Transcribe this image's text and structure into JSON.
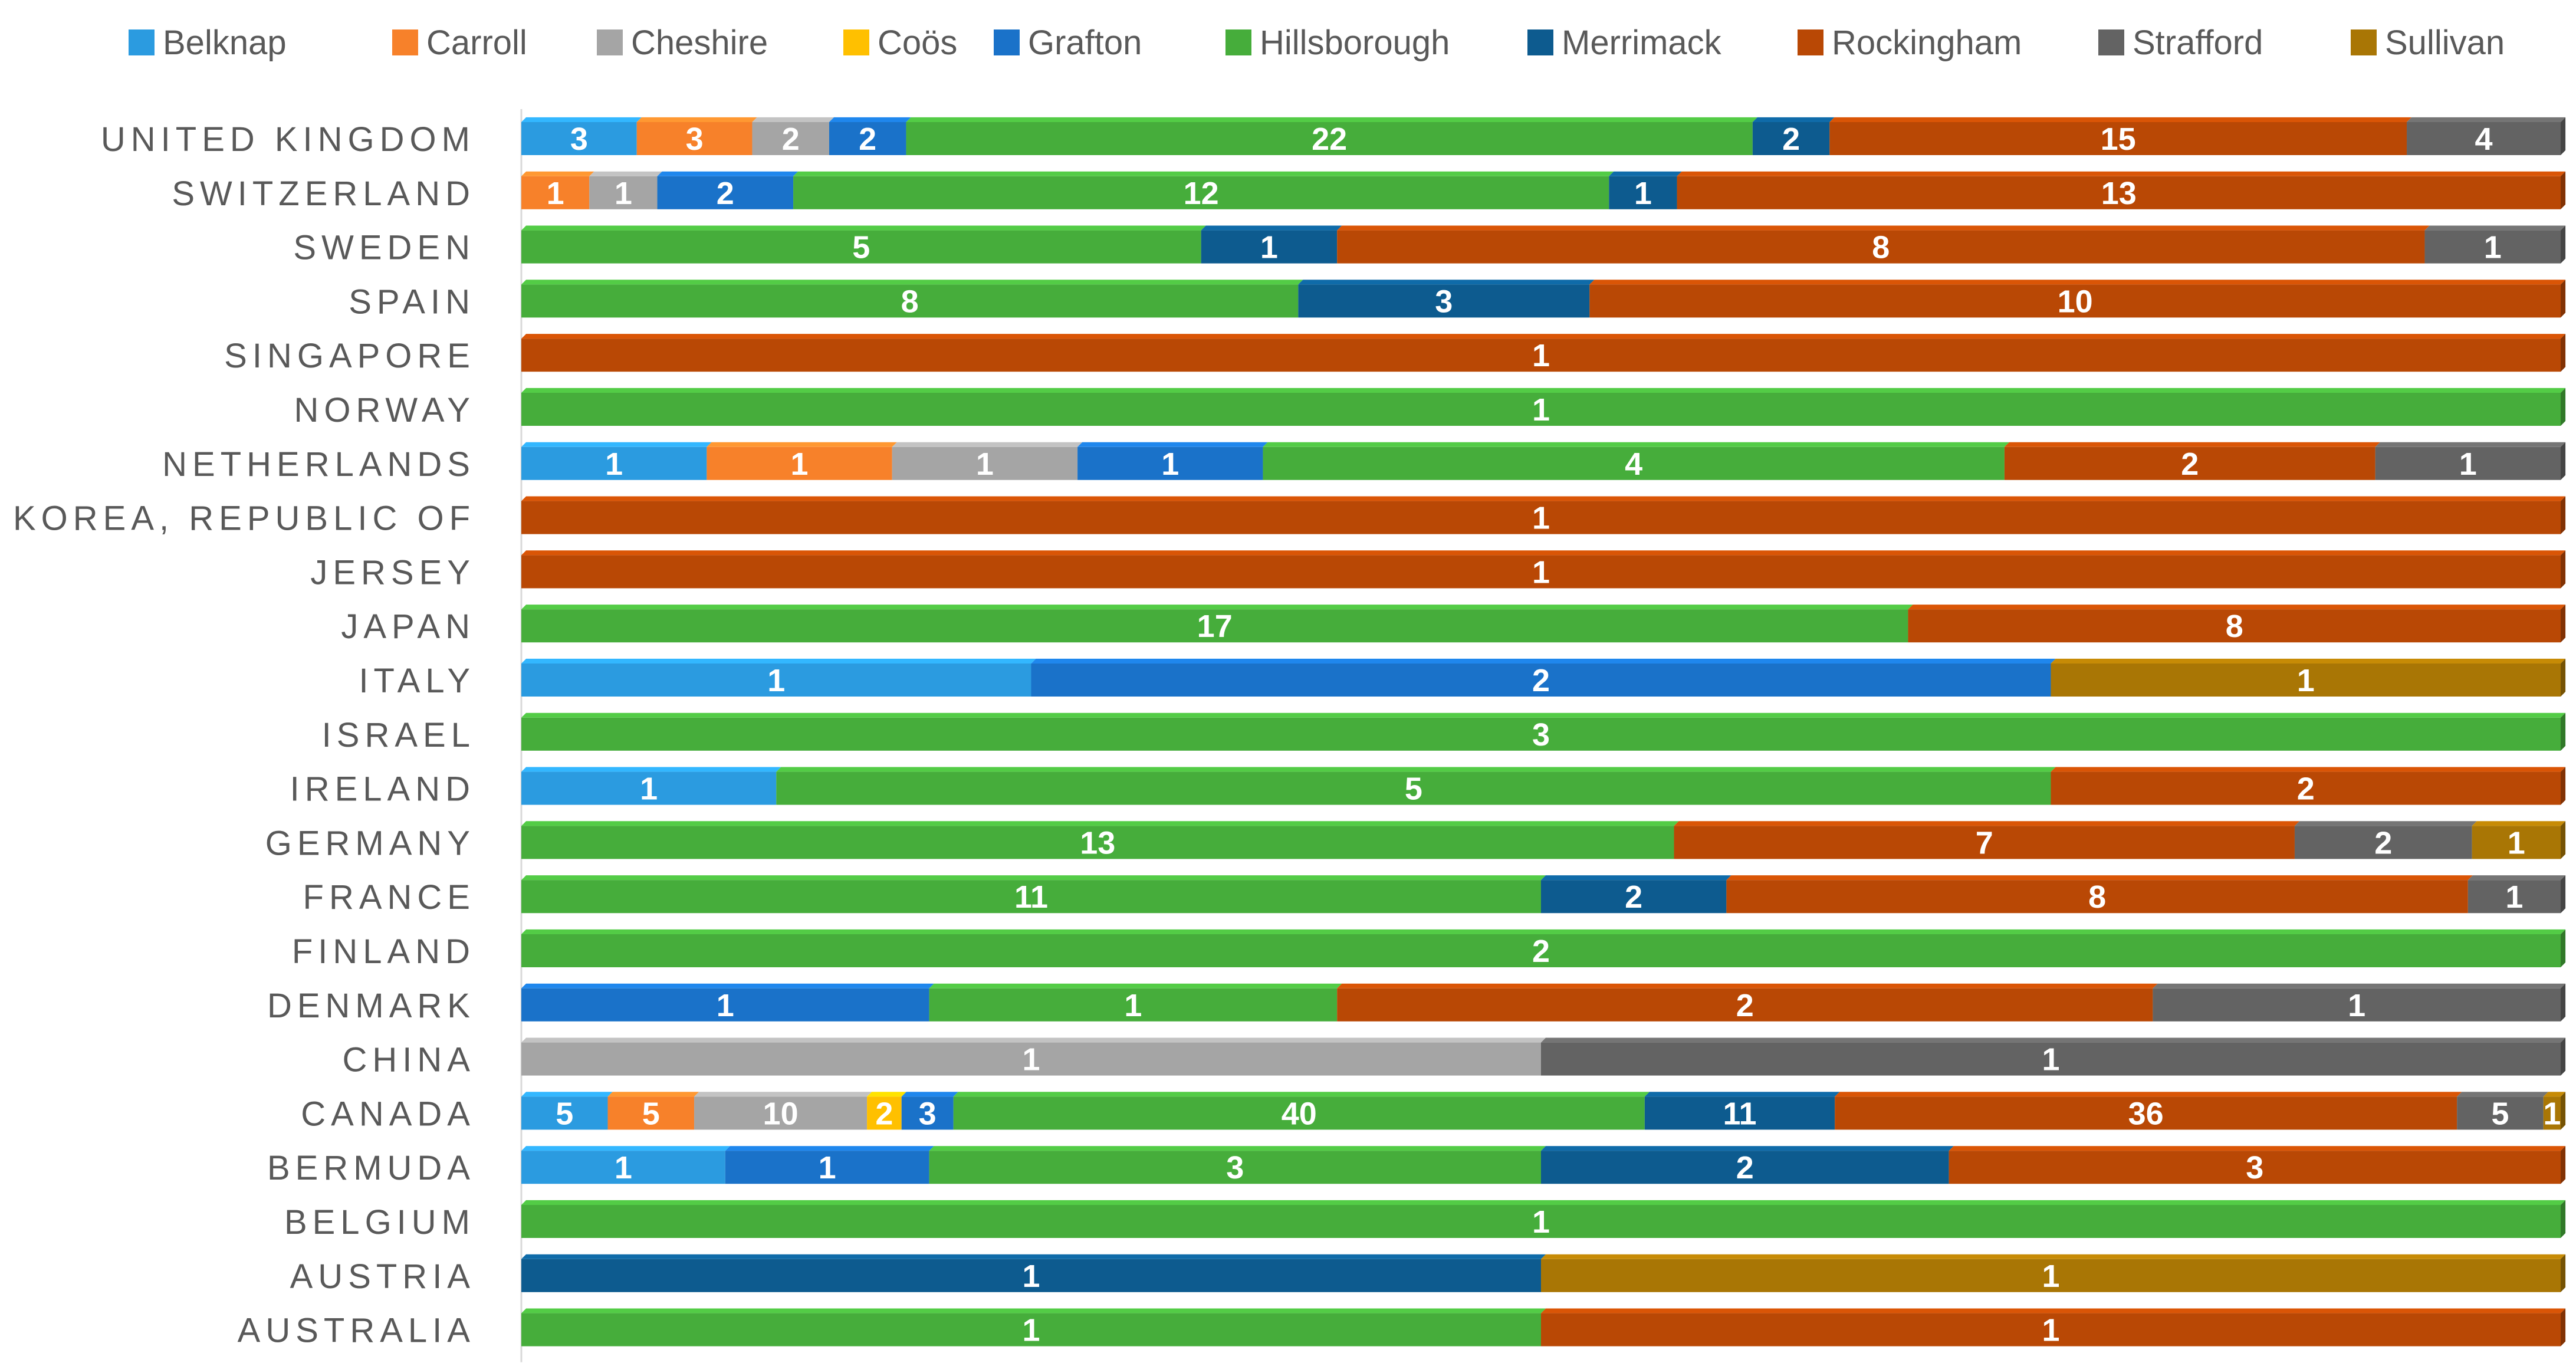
{
  "chart_data": {
    "type": "bar",
    "orientation": "horizontal",
    "stacking": "percent",
    "title": "",
    "xlabel": "",
    "ylabel": "",
    "legend_position": "top",
    "grid": false,
    "categories": [
      "UNITED KINGDOM",
      "SWITZERLAND",
      "SWEDEN",
      "SPAIN",
      "SINGAPORE",
      "NORWAY",
      "NETHERLANDS",
      "KOREA, REPUBLIC OF",
      "JERSEY",
      "JAPAN",
      "ITALY",
      "ISRAEL",
      "IRELAND",
      "GERMANY",
      "FRANCE",
      "FINLAND",
      "DENMARK",
      "CHINA",
      "CANADA",
      "BERMUDA",
      "BELGIUM",
      "AUSTRIA",
      "AUSTRALIA"
    ],
    "series": [
      {
        "name": "Belknap",
        "color": "#2b9be0",
        "values": [
          3,
          0,
          0,
          0,
          0,
          0,
          1,
          0,
          0,
          0,
          1,
          0,
          1,
          0,
          0,
          0,
          0,
          0,
          5,
          1,
          0,
          0,
          0
        ]
      },
      {
        "name": "Carroll",
        "color": "#f7812a",
        "values": [
          3,
          1,
          0,
          0,
          0,
          0,
          1,
          0,
          0,
          0,
          0,
          0,
          0,
          0,
          0,
          0,
          0,
          0,
          5,
          0,
          0,
          0,
          0
        ]
      },
      {
        "name": "Cheshire",
        "color": "#a5a5a5",
        "values": [
          2,
          1,
          0,
          0,
          0,
          0,
          1,
          0,
          0,
          0,
          0,
          0,
          0,
          0,
          0,
          0,
          0,
          1,
          10,
          0,
          0,
          0,
          0
        ]
      },
      {
        "name": "Coös",
        "color": "#ffc000",
        "values": [
          0,
          0,
          0,
          0,
          0,
          0,
          0,
          0,
          0,
          0,
          0,
          0,
          0,
          0,
          0,
          0,
          0,
          0,
          2,
          0,
          0,
          0,
          0
        ]
      },
      {
        "name": "Grafton",
        "color": "#1a72c9",
        "values": [
          2,
          2,
          0,
          0,
          0,
          0,
          1,
          0,
          0,
          0,
          2,
          0,
          0,
          0,
          0,
          0,
          1,
          0,
          3,
          1,
          0,
          0,
          0
        ]
      },
      {
        "name": "Hillsborough",
        "color": "#46ad3b",
        "values": [
          22,
          12,
          5,
          8,
          0,
          1,
          4,
          0,
          0,
          17,
          0,
          3,
          5,
          13,
          11,
          2,
          1,
          0,
          40,
          3,
          1,
          0,
          1
        ]
      },
      {
        "name": "Merrimack",
        "color": "#0d5b8f",
        "values": [
          2,
          1,
          1,
          3,
          0,
          0,
          0,
          0,
          0,
          0,
          0,
          0,
          0,
          0,
          2,
          0,
          0,
          0,
          11,
          2,
          0,
          1,
          0
        ]
      },
      {
        "name": "Rockingham",
        "color": "#b94805",
        "values": [
          15,
          13,
          8,
          10,
          1,
          0,
          2,
          1,
          1,
          8,
          0,
          0,
          2,
          7,
          8,
          0,
          2,
          0,
          36,
          3,
          0,
          0,
          1
        ]
      },
      {
        "name": "Strafford",
        "color": "#636363",
        "values": [
          4,
          0,
          1,
          0,
          0,
          0,
          1,
          0,
          0,
          0,
          0,
          0,
          0,
          2,
          1,
          0,
          1,
          1,
          5,
          0,
          0,
          0,
          0
        ]
      },
      {
        "name": "Sullivan",
        "color": "#a97605",
        "values": [
          0,
          0,
          0,
          0,
          0,
          0,
          0,
          0,
          0,
          0,
          1,
          0,
          0,
          1,
          0,
          0,
          0,
          0,
          1,
          0,
          0,
          1,
          0
        ]
      }
    ]
  }
}
